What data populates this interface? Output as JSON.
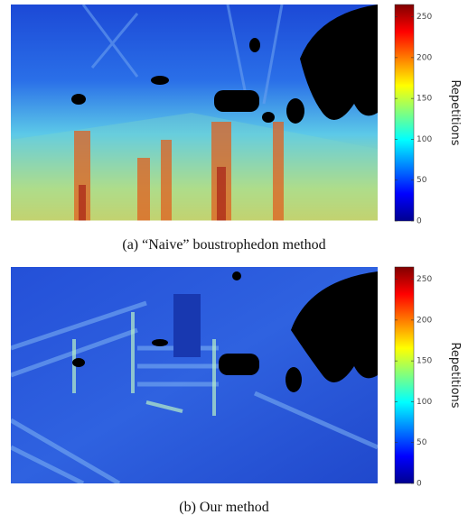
{
  "chart_data": [
    {
      "type": "heatmap",
      "caption": "(a) “Naive” boustrophedon method",
      "colorbar_label": "Repetitions",
      "clim": [
        0,
        265
      ],
      "cticks": [
        0,
        50,
        100,
        150,
        200,
        250
      ]
    },
    {
      "type": "heatmap",
      "caption": "(b) Our method",
      "colorbar_label": "Repetitions",
      "clim": [
        0,
        265
      ],
      "cticks": [
        0,
        50,
        100,
        150,
        200,
        250
      ]
    }
  ]
}
